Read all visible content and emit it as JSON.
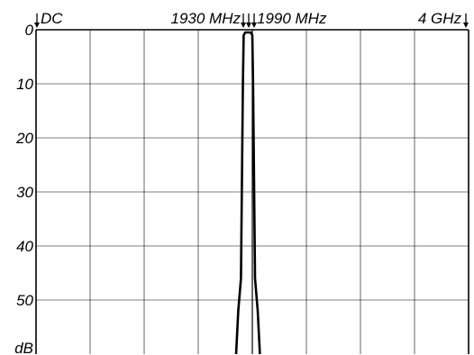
{
  "chart_data": {
    "type": "line",
    "title": "",
    "xlabel": "",
    "ylabel": "dB",
    "ylim": [
      0,
      60
    ],
    "y_axis_inverted": true,
    "y_ticks": [
      0,
      10,
      20,
      30,
      40,
      50
    ],
    "y_tick_labels": [
      "0",
      "10",
      "20",
      "30",
      "40",
      "50"
    ],
    "y_unit_label": "dB",
    "x_axis_labels": {
      "start": "DC",
      "band_low": "1930 MHz",
      "band_high": "1990 MHz",
      "end": "4 GHz"
    },
    "grid": true,
    "grid_columns": 8,
    "grid_rows": 6,
    "x_range_mhz": [
      0,
      4000
    ],
    "series": [
      {
        "color": "#000000",
        "points": [
          [
            1850,
            60
          ],
          [
            1870,
            52
          ],
          [
            1895,
            46
          ],
          [
            1913,
            10
          ],
          [
            1920,
            1
          ],
          [
            1935,
            0.5
          ],
          [
            1960,
            0.5
          ],
          [
            1985,
            0.5
          ],
          [
            2000,
            1
          ],
          [
            2007,
            10
          ],
          [
            2025,
            46
          ],
          [
            2050,
            52
          ],
          [
            2070,
            60
          ]
        ]
      }
    ]
  }
}
